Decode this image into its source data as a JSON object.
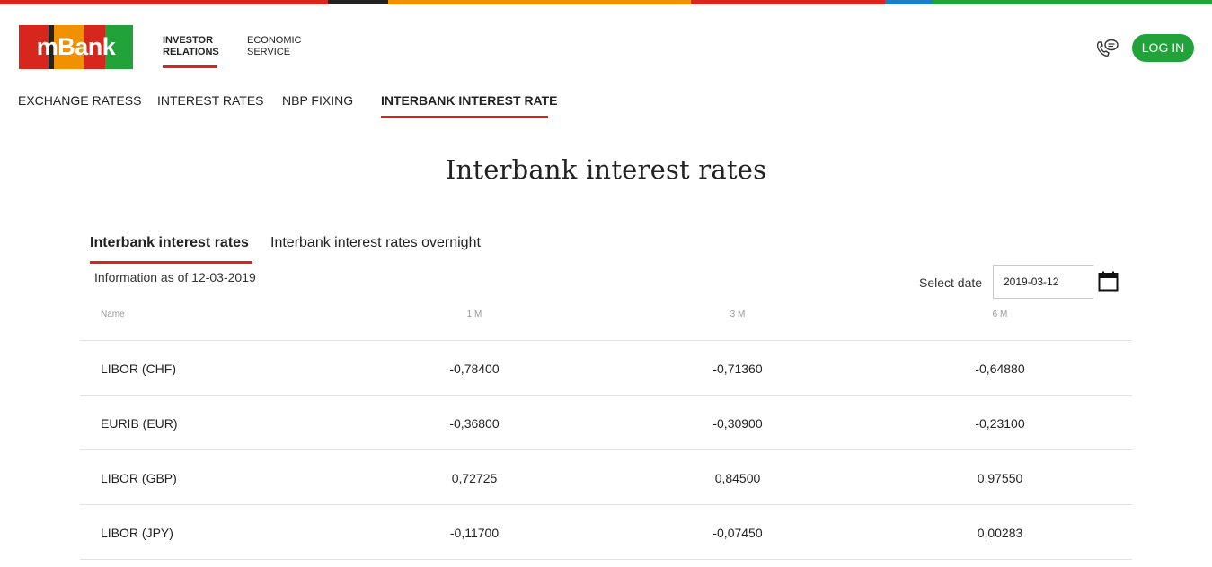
{
  "top_stripe_colors": [
    "#d6261d",
    "#222222",
    "#f29100",
    "#d6261d",
    "#1c7ec4",
    "#22a33a"
  ],
  "brand": {
    "logo_text": "mBank",
    "logo_colors": [
      "#d6261d",
      "#222222",
      "#f29100",
      "#d6261d",
      "#22a33a"
    ]
  },
  "header": {
    "nav": [
      {
        "label": "INVESTOR RELATIONS",
        "active": true
      },
      {
        "label": "ECONOMIC SERVICE",
        "active": false
      }
    ],
    "phone_icon": "phone-chat-icon",
    "login_label": "LOG IN"
  },
  "subnav": [
    {
      "label": "EXCHANGE RATESS",
      "active": false
    },
    {
      "label": "INTEREST RATES",
      "active": false
    },
    {
      "label": "NBP FIXING",
      "active": false
    },
    {
      "label": "INTERBANK INTEREST RATE",
      "active": true
    }
  ],
  "page_title": "Interbank interest rates",
  "tabs": [
    {
      "label": "Interbank interest rates",
      "active": true
    },
    {
      "label": "Interbank interest rates overnight",
      "active": false
    }
  ],
  "info_text": "Information as of 12-03-2019",
  "date_picker": {
    "label": "Select date",
    "value": "2019-03-12",
    "icon": "calendar-icon"
  },
  "table": {
    "headers": [
      "Name",
      "1 M",
      "3 M",
      "6 M"
    ],
    "rows": [
      {
        "name": "LIBOR (CHF)",
        "values": [
          "-0,78400",
          "-0,71360",
          "-0,64880"
        ]
      },
      {
        "name": "EURIB (EUR)",
        "values": [
          "-0,36800",
          "-0,30900",
          "-0,23100"
        ]
      },
      {
        "name": "LIBOR (GBP)",
        "values": [
          "0,72725",
          "0,84500",
          "0,97550"
        ]
      },
      {
        "name": "LIBOR (JPY)",
        "values": [
          "-0,11700",
          "-0,07450",
          "0,00283"
        ]
      }
    ]
  },
  "colors": {
    "accent_red": "#d6261d",
    "login_green": "#22a33a"
  }
}
